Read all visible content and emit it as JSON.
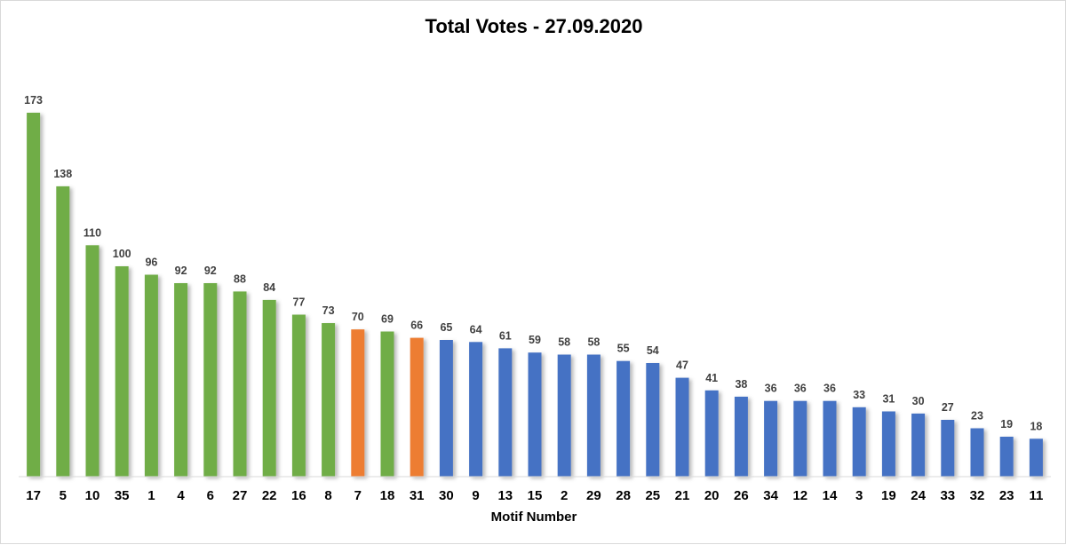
{
  "chart_data": {
    "type": "bar",
    "title": "Total Votes - 27.09.2020",
    "xlabel": "Motif Number",
    "ylabel": "",
    "ylim": [
      0,
      175
    ],
    "grid": false,
    "legend": "none",
    "categories": [
      "17",
      "5",
      "10",
      "35",
      "1",
      "4",
      "6",
      "27",
      "22",
      "16",
      "8",
      "7",
      "18",
      "31",
      "30",
      "9",
      "13",
      "15",
      "2",
      "29",
      "28",
      "25",
      "21",
      "20",
      "26",
      "34",
      "12",
      "14",
      "3",
      "19",
      "24",
      "33",
      "32",
      "23",
      "11"
    ],
    "values": [
      173,
      138,
      110,
      100,
      96,
      92,
      92,
      88,
      84,
      77,
      73,
      70,
      69,
      66,
      65,
      64,
      61,
      59,
      58,
      58,
      55,
      54,
      47,
      41,
      38,
      36,
      36,
      36,
      33,
      31,
      30,
      27,
      23,
      19,
      18
    ],
    "bar_colors": [
      "#70ad47",
      "#70ad47",
      "#70ad47",
      "#70ad47",
      "#70ad47",
      "#70ad47",
      "#70ad47",
      "#70ad47",
      "#70ad47",
      "#70ad47",
      "#70ad47",
      "#ed7d31",
      "#70ad47",
      "#ed7d31",
      "#4472c4",
      "#4472c4",
      "#4472c4",
      "#4472c4",
      "#4472c4",
      "#4472c4",
      "#4472c4",
      "#4472c4",
      "#4472c4",
      "#4472c4",
      "#4472c4",
      "#4472c4",
      "#4472c4",
      "#4472c4",
      "#4472c4",
      "#4472c4",
      "#4472c4",
      "#4472c4",
      "#4472c4",
      "#4472c4",
      "#4472c4"
    ]
  }
}
